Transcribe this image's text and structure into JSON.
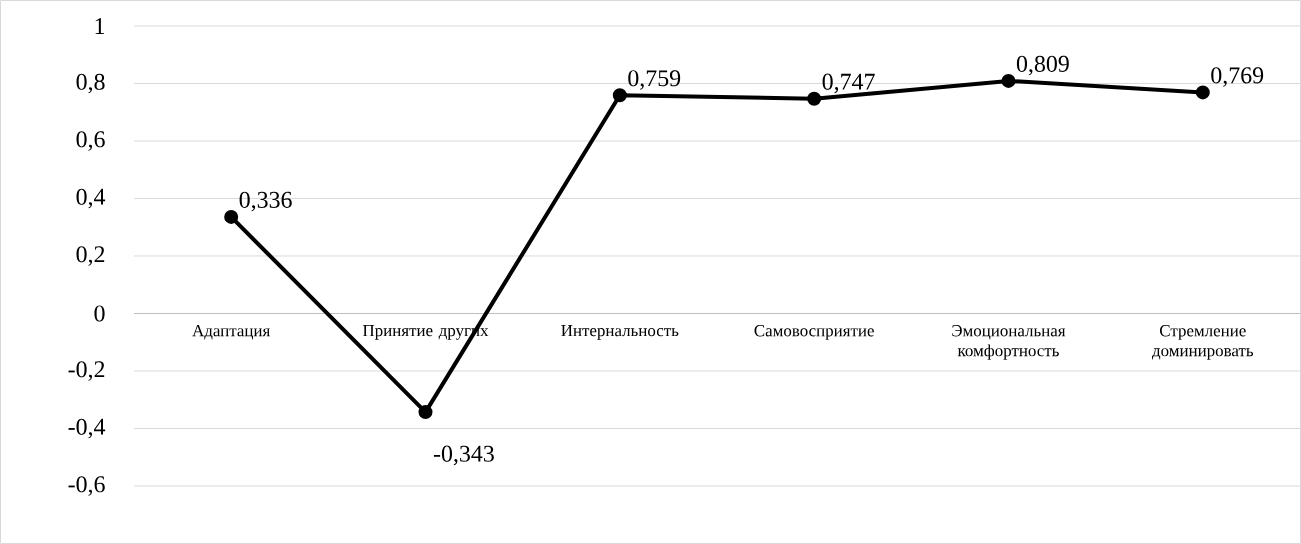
{
  "chart_data": {
    "type": "line",
    "categories": [
      "Адаптация",
      "Принятие других",
      "Интернальность",
      "Самовосприятие",
      "Эмоциональная комфортность",
      "Стремление доминировать"
    ],
    "series": [
      {
        "color": "#000000",
        "values": [
          0.336,
          -0.343,
          0.759,
          0.747,
          0.809,
          0.769
        ],
        "value_labels": [
          "0,336",
          "-0,343",
          "0,759",
          "0,747",
          "0,809",
          "0,769"
        ]
      }
    ],
    "ylim": [
      -0.8,
      1
    ],
    "yticks": [
      1,
      {
        "value": 0.8,
        "label": "0,8"
      },
      {
        "value": 0.6,
        "label": "0,6"
      },
      {
        "value": 0.4,
        "label": "0,4"
      },
      {
        "value": 0.2,
        "label": "0,2"
      },
      0,
      {
        "value": -0.2,
        "label": "-0,2"
      },
      {
        "value": -0.4,
        "label": "-0,4"
      },
      {
        "value": -0.6,
        "label": "-0,6"
      }
    ],
    "grid": "y",
    "marker": "circle",
    "line_style": "solid"
  }
}
